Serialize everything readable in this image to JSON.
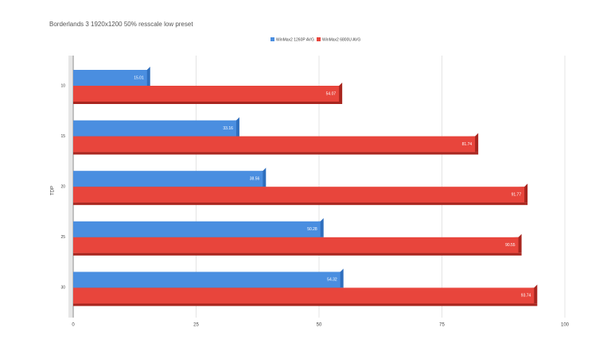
{
  "chart_data": {
    "type": "bar",
    "orientation": "horizontal",
    "title": "Borderlands 3 1920x1200 50% resscale low preset",
    "y_label": "TDP",
    "categories": [
      "10",
      "15",
      "20",
      "25",
      "30"
    ],
    "series": [
      {
        "name": "WinMax2 1260P AVG",
        "color": "#4a8ee0",
        "values": [
          15.01,
          33.16,
          38.56,
          50.28,
          54.32
        ]
      },
      {
        "name": "WinMax2 6800U AVG",
        "color": "#e8453c",
        "values": [
          54.07,
          81.74,
          91.77,
          90.55,
          93.74
        ]
      }
    ],
    "xlim": [
      0,
      100
    ],
    "xticks": [
      0,
      25,
      50,
      75,
      100
    ],
    "grid": true,
    "legend": "top"
  }
}
